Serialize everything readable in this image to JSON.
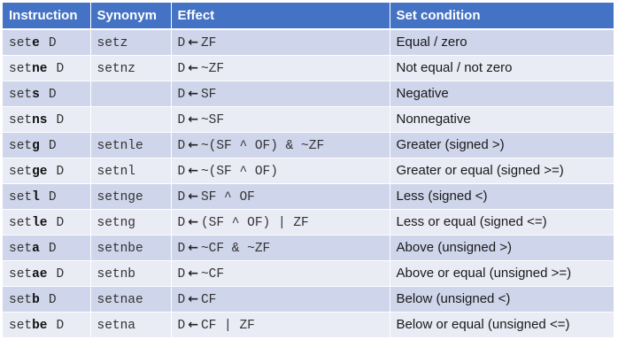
{
  "headers": {
    "instruction": "Instruction",
    "synonym": "Synonym",
    "effect": "Effect",
    "condition": "Set condition"
  },
  "effect_lhs": "D",
  "effect_arrow": "←",
  "rows": [
    {
      "prefix": "set",
      "suffix": "e",
      "operand": "D",
      "synonym": "setz",
      "effect": "ZF",
      "condition": "Equal / zero"
    },
    {
      "prefix": "set",
      "suffix": "ne",
      "operand": "D",
      "synonym": "setnz",
      "effect": "~ZF",
      "condition": "Not equal / not zero"
    },
    {
      "prefix": "set",
      "suffix": "s",
      "operand": "D",
      "synonym": "",
      "effect": "SF",
      "condition": "Negative"
    },
    {
      "prefix": "set",
      "suffix": "ns",
      "operand": "D",
      "synonym": "",
      "effect": "~SF",
      "condition": "Nonnegative"
    },
    {
      "prefix": "set",
      "suffix": "g",
      "operand": "D",
      "synonym": "setnle",
      "effect": "~(SF ^ OF) & ~ZF",
      "condition": "Greater (signed >)"
    },
    {
      "prefix": "set",
      "suffix": "ge",
      "operand": "D",
      "synonym": "setnl",
      "effect": "~(SF ^ OF)",
      "condition": "Greater or equal (signed >=)"
    },
    {
      "prefix": "set",
      "suffix": "l",
      "operand": "D",
      "synonym": "setnge",
      "effect": "SF ^ OF",
      "condition": "Less (signed <)"
    },
    {
      "prefix": "set",
      "suffix": "le",
      "operand": "D",
      "synonym": "setng",
      "effect": "(SF ^ OF) | ZF",
      "condition": "Less or equal (signed <=)"
    },
    {
      "prefix": "set",
      "suffix": "a",
      "operand": "D",
      "synonym": "setnbe",
      "effect": "~CF & ~ZF",
      "condition": "Above (unsigned >)"
    },
    {
      "prefix": "set",
      "suffix": "ae",
      "operand": "D",
      "synonym": "setnb",
      "effect": "~CF",
      "condition": "Above or equal (unsigned >=)"
    },
    {
      "prefix": "set",
      "suffix": "b",
      "operand": "D",
      "synonym": "setnae",
      "effect": "CF",
      "condition": "Below (unsigned <)"
    },
    {
      "prefix": "set",
      "suffix": "be",
      "operand": "D",
      "synonym": "setna",
      "effect": "CF | ZF",
      "condition": "Below or equal (unsigned <=)"
    }
  ]
}
